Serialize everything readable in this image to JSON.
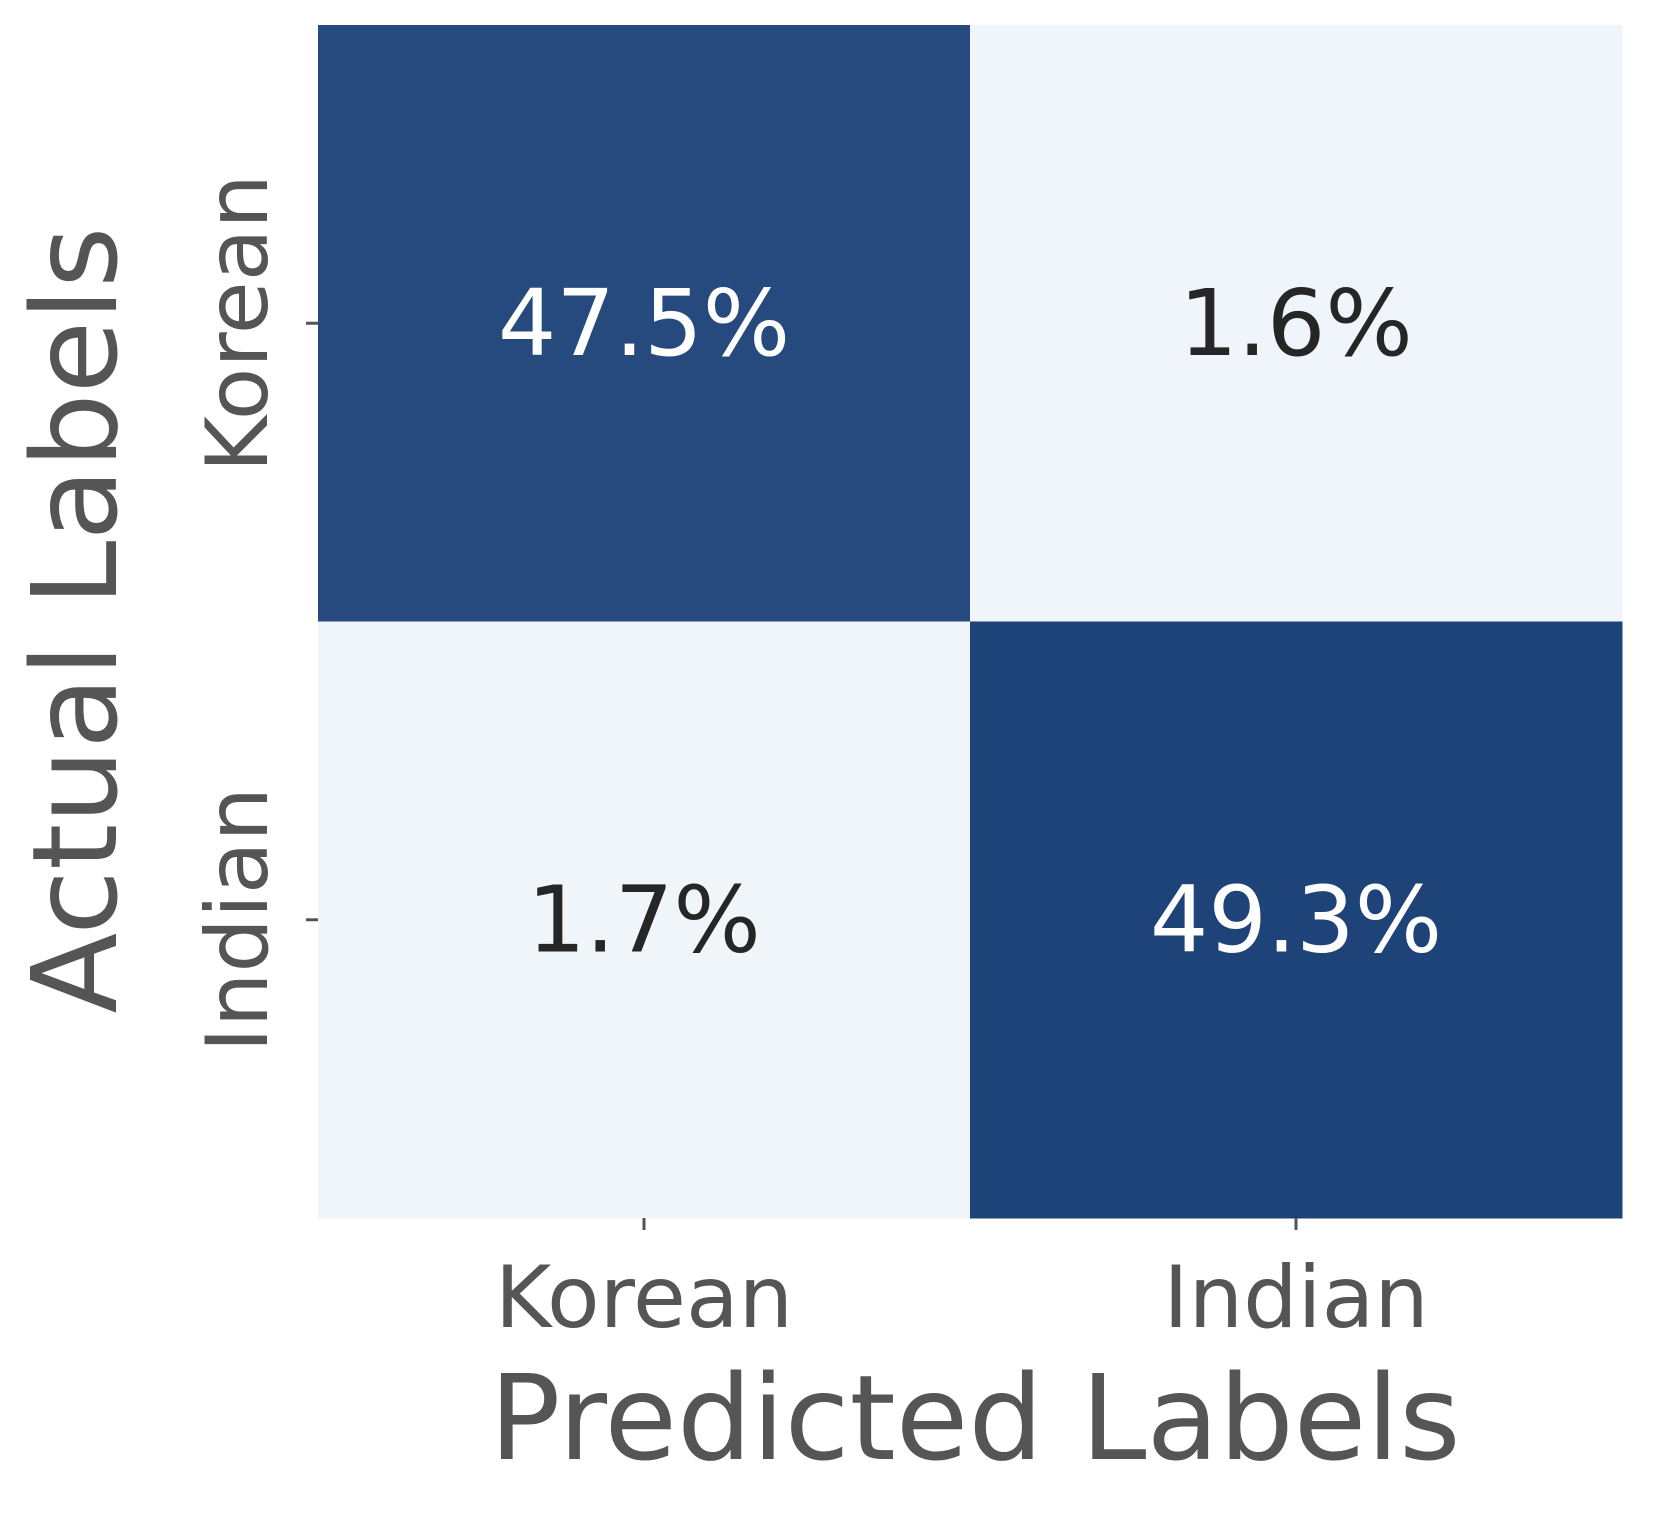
{
  "chart_data": {
    "type": "heatmap",
    "title": "",
    "xlabel": "Predicted Labels",
    "ylabel": "Actual Labels",
    "x_categories": [
      "Korean",
      "Indian"
    ],
    "y_categories": [
      "Korean",
      "Indian"
    ],
    "values": [
      [
        47.5,
        1.6
      ],
      [
        1.7,
        49.3
      ]
    ],
    "cell_labels": [
      [
        "47.5%",
        "1.6%"
      ],
      [
        "1.7%",
        "49.3%"
      ]
    ],
    "value_range": [
      0,
      50
    ],
    "colormap": {
      "low": "#f7fbff",
      "high": "#08306b"
    },
    "cell_text_colors": {
      "on_dark": "#ffffff",
      "on_light": "#262626"
    },
    "colorbar": false,
    "grid": false
  }
}
